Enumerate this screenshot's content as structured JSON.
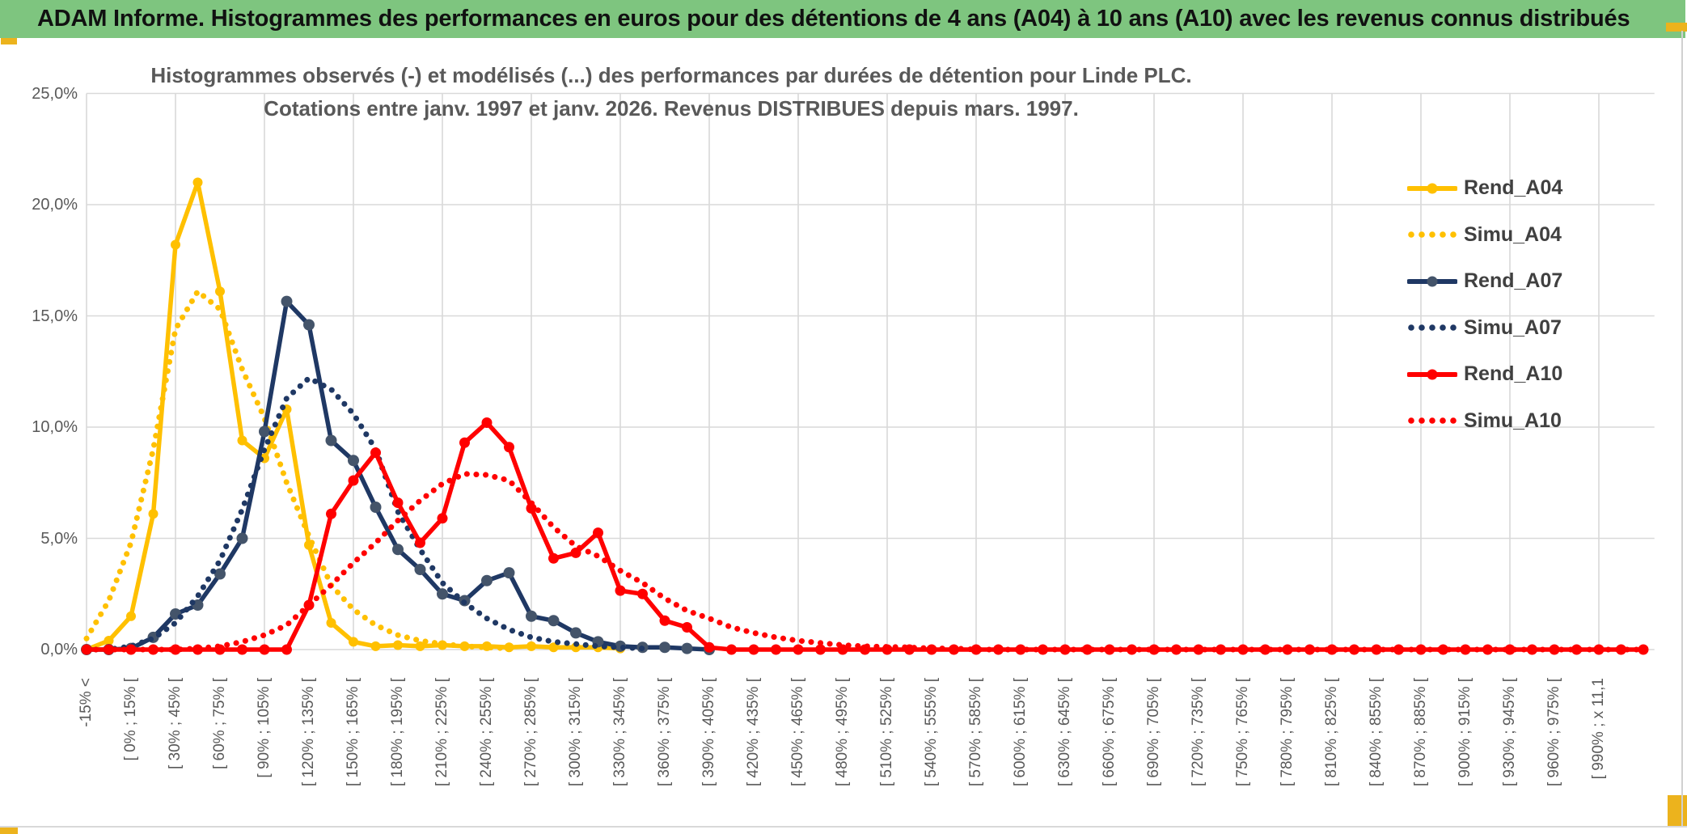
{
  "banner": {
    "title": "ADAM Informe. Histogrammes des performances en euros pour des détentions de 4 ans (A04) à 10 ans (A10) avec les revenus connus distribués"
  },
  "chart": {
    "title_line1": "Histogrammes observés (-) et modélisés (...) des performances par durées de détention pour Linde PLC.",
    "title_line2": "Cotations entre janv. 1997 et janv. 2026. Revenus DISTRIBUES depuis mars. 1997.",
    "y_axis_labels": [
      "25,0%",
      "20,0%",
      "15,0%",
      "10,0%",
      "5,0%",
      "0,0%"
    ]
  },
  "colors": {
    "banner_green": "#7ec57f",
    "accent_yellow": "#ecb31d",
    "grid": "#d9d9d9",
    "axis_text": "#595959",
    "series_yellow": "#FFC000",
    "series_navy": "#1F3864",
    "navy_marker": "#44546A",
    "series_red": "#FF0000"
  },
  "chart_data": {
    "type": "line",
    "title": "Histogrammes observés (-) et modélisés (...) des performances par durées de détention pour Linde PLC.",
    "subtitle": "Cotations entre janv. 1997 et janv. 2026. Revenus DISTRIBUES depuis mars. 1997.",
    "ylabel": "",
    "xlabel": "",
    "ylim": [
      0,
      25
    ],
    "y_tick_step_pct": 5,
    "grid": true,
    "legend_position": "right",
    "n_bins": 71,
    "x_labels_every_other_bin": true,
    "x_tick_labels": [
      "-15% <",
      "[ 0% ; 15% [",
      "[ 30% ; 45% [",
      "[ 60% ; 75% [",
      "[ 90% ; 105% [",
      "[ 120% ; 135% [",
      "[ 150% ; 165% [",
      "[ 180% ; 195% [",
      "[ 210% ; 225% [",
      "[ 240% ; 255% [",
      "[ 270% ; 285% [",
      "[ 300% ; 315% [",
      "[ 330% ; 345% [",
      "[ 360% ; 375% [",
      "[ 390% ; 405% [",
      "[ 420% ; 435% [",
      "[ 450% ; 465% [",
      "[ 480% ; 495% [",
      "[ 510% ; 525% [",
      "[ 540% ; 555% [",
      "[ 570% ; 585% [",
      "[ 600% ; 615% [",
      "[ 630% ; 645% [",
      "[ 660% ; 675% [",
      "[ 690% ; 705% [",
      "[ 720% ; 735% [",
      "[ 750% ; 765% [",
      "[ 780% ; 795% [",
      "[ 810% ; 825% [",
      "[ 840% ; 855% [",
      "[ 870% ; 885% [",
      "[ 900% ; 915% [",
      "[ 930% ; 945% [",
      "[ 960% ; 975% [",
      "[ 990% ; x 11,1"
    ],
    "series": [
      {
        "name": "Rend_A04",
        "style": "solid",
        "color": "#FFC000",
        "marker_color": "#FFC000",
        "marker_r": 6,
        "values": [
          0,
          0.4,
          1.5,
          6.1,
          18.2,
          21.0,
          16.1,
          9.4,
          8.6,
          10.8,
          4.7,
          1.2,
          0.35,
          0.15,
          0.2,
          0.15,
          0.2,
          0.15,
          0.15,
          0.1,
          0.15,
          0.1,
          0.1,
          0.1,
          0.05
        ]
      },
      {
        "name": "Simu_A04",
        "style": "dotted",
        "color": "#FFC000",
        "values": [
          0.5,
          2.2,
          4.8,
          9.0,
          14.4,
          16.1,
          15.3,
          12.6,
          10.4,
          7.5,
          5.1,
          2.9,
          1.8,
          1.1,
          0.65,
          0.4,
          0.25,
          0.15,
          0.1,
          0.05
        ]
      },
      {
        "name": "Rend_A07",
        "style": "solid",
        "color": "#1F3864",
        "marker_color": "#44546A",
        "marker_r": 7,
        "values": [
          0,
          0,
          0.05,
          0.55,
          1.6,
          2.0,
          3.4,
          5.0,
          9.8,
          15.65,
          14.6,
          9.4,
          8.5,
          6.4,
          4.5,
          3.6,
          2.5,
          2.2,
          3.1,
          3.45,
          1.5,
          1.3,
          0.75,
          0.35,
          0.15,
          0.1,
          0.1,
          0.05,
          0
        ]
      },
      {
        "name": "Simu_A07",
        "style": "dotted",
        "color": "#1F3864",
        "values": [
          0,
          0,
          0.15,
          0.5,
          1.2,
          2.4,
          4.0,
          6.3,
          9.0,
          11.3,
          12.2,
          11.7,
          10.6,
          9.0,
          6.2,
          4.5,
          3.0,
          2.1,
          1.4,
          0.9,
          0.55,
          0.35,
          0.25,
          0.15,
          0.1,
          0.05
        ]
      },
      {
        "name": "Simu_A10",
        "style": "dotted",
        "color": "#FF0000",
        "values": [
          0,
          0,
          0,
          0,
          0,
          0.05,
          0.15,
          0.35,
          0.65,
          1.1,
          2.0,
          2.9,
          3.9,
          4.8,
          5.8,
          6.7,
          7.45,
          7.9,
          7.85,
          7.6,
          6.6,
          5.5,
          4.65,
          4.2,
          3.55,
          3.0,
          2.3,
          1.75,
          1.4,
          1.0,
          0.75,
          0.55,
          0.4,
          0.3,
          0.2,
          0.15,
          0.12,
          0.1,
          0.05,
          0.05,
          0,
          0,
          0,
          0,
          0,
          0,
          0,
          0,
          0,
          0,
          0,
          0,
          0,
          0,
          0,
          0,
          0,
          0,
          0,
          0,
          0,
          0,
          0,
          0,
          0,
          0,
          0,
          0,
          0,
          0,
          0
        ]
      },
      {
        "name": "Rend_A10",
        "style": "solid",
        "color": "#FF0000",
        "marker_color": "#FF0000",
        "marker_r": 6.5,
        "values": [
          0,
          0,
          0,
          0,
          0,
          0,
          0,
          0,
          0,
          0,
          2.0,
          6.1,
          7.6,
          8.85,
          6.6,
          4.8,
          5.9,
          9.3,
          10.2,
          9.1,
          6.35,
          4.1,
          4.35,
          5.25,
          2.65,
          2.5,
          1.3,
          1.0,
          0.1,
          0,
          0,
          0,
          0,
          0,
          0,
          0,
          0,
          0,
          0,
          0,
          0,
          0,
          0,
          0,
          0,
          0,
          0,
          0,
          0,
          0,
          0,
          0,
          0,
          0,
          0,
          0,
          0,
          0,
          0,
          0,
          0,
          0,
          0,
          0,
          0,
          0,
          0,
          0,
          0,
          0,
          0
        ]
      }
    ],
    "legend_order": [
      "Rend_A04",
      "Simu_A04",
      "Rend_A07",
      "Simu_A07",
      "Rend_A10",
      "Simu_A10"
    ]
  }
}
